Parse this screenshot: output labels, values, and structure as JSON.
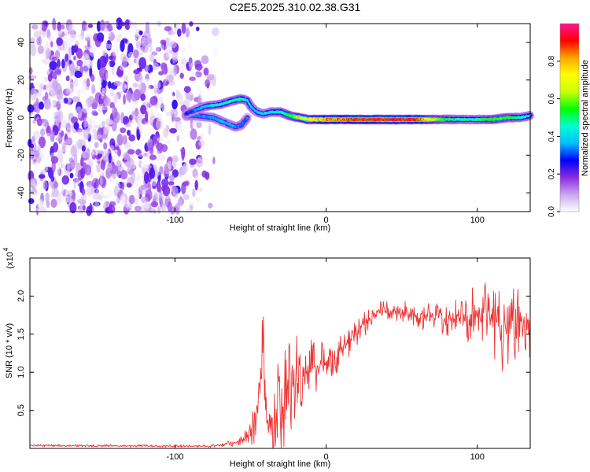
{
  "figure_title": "C2E5.2025.310.02.38.G31",
  "chart_data": [
    {
      "type": "heatmap",
      "title": "",
      "xlabel": "Height of straight line (km)",
      "ylabel": "Frequency (Hz)",
      "xlim": [
        -196,
        135
      ],
      "ylim": [
        -50,
        50
      ],
      "x_ticks": [
        -100,
        0,
        100
      ],
      "x_tick_labels": [
        "-100",
        "0",
        "100"
      ],
      "y_ticks": [
        -40,
        -20,
        0,
        20,
        40
      ],
      "y_tick_labels": [
        "-40",
        "-20",
        "0",
        "20",
        "40"
      ],
      "colorbar": {
        "label": "Normalized spectral amplitude",
        "range": [
          0,
          1
        ],
        "ticks": [
          0.0,
          0.2,
          0.4,
          0.6,
          0.8
        ],
        "tick_labels": [
          "0.0",
          "0.2",
          "0.4",
          "0.6",
          "0.8"
        ],
        "colors": [
          "#ffffff",
          "#c9a6ee",
          "#8a2be2",
          "#0000ff",
          "#00bfff",
          "#00ffd0",
          "#00ff00",
          "#c8ff00",
          "#ffff00",
          "#ffa500",
          "#ff0000",
          "#ff1493"
        ]
      },
      "noise_region": {
        "x_start": -196,
        "x_fade_start": -105,
        "x_end": -70,
        "amplitude_range": [
          0.0,
          0.24
        ]
      },
      "ridge": {
        "x": [
          -93,
          -80,
          -70,
          -62,
          -56,
          -52,
          -50,
          -46,
          -42,
          -36,
          -30,
          -24,
          -18,
          -12,
          -6,
          0,
          20,
          40,
          60,
          70,
          80,
          90,
          100,
          110,
          120,
          128,
          135
        ],
        "freq": [
          2,
          6,
          7,
          9,
          10,
          9,
          6,
          3,
          2,
          3,
          3,
          1,
          0,
          -1,
          -1,
          -1,
          -1,
          -1,
          -1,
          -1,
          -1,
          -1,
          -1,
          -1,
          0,
          0,
          1
        ],
        "amplitude": [
          0.3,
          0.42,
          0.48,
          0.5,
          0.52,
          0.45,
          0.42,
          0.4,
          0.42,
          0.45,
          0.5,
          0.6,
          0.7,
          0.78,
          0.82,
          0.88,
          0.95,
          1.0,
          0.98,
          0.7,
          0.55,
          0.5,
          0.5,
          0.6,
          0.58,
          0.5,
          0.45
        ]
      },
      "branch": {
        "x": [
          -93,
          -85,
          -75,
          -66,
          -60,
          -56,
          -52
        ],
        "freq": [
          1,
          1,
          0,
          -3,
          -5,
          -4,
          0
        ],
        "amplitude": [
          0.3,
          0.35,
          0.38,
          0.4,
          0.38,
          0.35,
          0.35
        ]
      }
    },
    {
      "type": "line",
      "title": "",
      "xlabel": "Height of straight line (km)",
      "ylabel": "SNR (10 * v/v)",
      "y_scale_label": "(x10",
      "y_scale_exponent": "4",
      "xlim": [
        -196,
        135
      ],
      "ylim": [
        0,
        25000
      ],
      "x_ticks": [
        -100,
        0,
        100
      ],
      "x_tick_labels": [
        "-100",
        "0",
        "100"
      ],
      "y_ticks": [
        5000,
        10000,
        15000,
        20000
      ],
      "y_tick_labels": [
        "0.5",
        "1.0",
        "1.5",
        "2.0"
      ],
      "series": [
        {
          "name": "SNR",
          "color": "#ee3333",
          "x": [
            -196,
            -150,
            -100,
            -80,
            -70,
            -60,
            -55,
            -50,
            -48,
            -45,
            -42,
            -40,
            -38,
            -35,
            -30,
            -25,
            -20,
            -15,
            -10,
            -5,
            0,
            5,
            10,
            15,
            20,
            25,
            30,
            35,
            40,
            50,
            60,
            70,
            80,
            90,
            100,
            110,
            115,
            120,
            125,
            130,
            135
          ],
          "y": [
            400,
            350,
            300,
            300,
            400,
            700,
            1100,
            2000,
            3500,
            6500,
            11000,
            6000,
            3500,
            5000,
            7000,
            8500,
            10000,
            9500,
            10500,
            11000,
            11500,
            12000,
            13000,
            14000,
            15000,
            16500,
            17500,
            18000,
            18000,
            17800,
            17500,
            17200,
            17000,
            17200,
            17500,
            17000,
            16500,
            16000,
            16500,
            17000,
            16500
          ],
          "noise_amplitude": [
            100,
            100,
            100,
            100,
            150,
            300,
            500,
            1000,
            2000,
            3500,
            6000,
            4500,
            3500,
            4500,
            5000,
            4500,
            4000,
            3500,
            3000,
            2500,
            2000,
            1500,
            1500,
            1300,
            1200,
            1100,
            1000,
            900,
            800,
            900,
            1100,
            1300,
            1500,
            2000,
            2500,
            3500,
            4000,
            4500,
            4000,
            3500,
            3000
          ]
        }
      ]
    }
  ]
}
